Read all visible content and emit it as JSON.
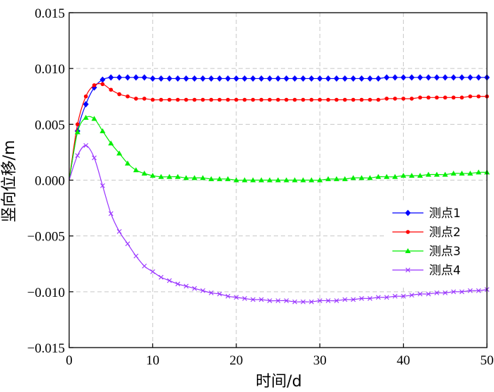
{
  "chart_data": {
    "type": "line",
    "xlabel": "时间/d",
    "ylabel": "竖向位移/m",
    "xlim": [
      0,
      50
    ],
    "ylim": [
      -0.015,
      0.015
    ],
    "x_ticks": [
      0,
      10,
      20,
      30,
      40,
      50
    ],
    "x_tick_labels": [
      "0",
      "10",
      "20",
      "30",
      "40",
      "50"
    ],
    "y_ticks": [
      -0.015,
      -0.01,
      -0.005,
      0.0,
      0.005,
      0.01,
      0.015
    ],
    "y_tick_labels": [
      "−0.015",
      "−0.010",
      "−0.005",
      "0.000",
      "0.005",
      "0.010",
      "0.015"
    ],
    "grid": true,
    "legend_position": "right-middle",
    "series": [
      {
        "name": "测点1",
        "color": "#0000ff",
        "marker": "diamond",
        "x": [
          0,
          1,
          2,
          3,
          4,
          5,
          6,
          7,
          8,
          9,
          10,
          11,
          12,
          13,
          14,
          15,
          16,
          17,
          18,
          19,
          20,
          21,
          22,
          23,
          24,
          25,
          26,
          27,
          28,
          29,
          30,
          31,
          32,
          33,
          34,
          35,
          36,
          37,
          38,
          39,
          40,
          41,
          42,
          43,
          44,
          45,
          46,
          47,
          48,
          49,
          50
        ],
        "values": [
          0.0,
          0.0044,
          0.0068,
          0.0083,
          0.009,
          0.0092,
          0.0092,
          0.0092,
          0.0092,
          0.0092,
          0.0091,
          0.0091,
          0.0091,
          0.0091,
          0.0091,
          0.0091,
          0.0091,
          0.0091,
          0.0091,
          0.0091,
          0.0091,
          0.0091,
          0.0091,
          0.0091,
          0.0091,
          0.0091,
          0.0091,
          0.0091,
          0.0091,
          0.0091,
          0.0091,
          0.0091,
          0.0091,
          0.0091,
          0.0091,
          0.0091,
          0.0091,
          0.0091,
          0.0092,
          0.0092,
          0.0092,
          0.0092,
          0.0092,
          0.0092,
          0.0092,
          0.0092,
          0.0092,
          0.0092,
          0.0092,
          0.0092,
          0.0092
        ]
      },
      {
        "name": "测点2",
        "color": "#ff0000",
        "marker": "circle",
        "x": [
          0,
          1,
          2,
          3,
          4,
          5,
          6,
          7,
          8,
          9,
          10,
          11,
          12,
          13,
          14,
          15,
          16,
          17,
          18,
          19,
          20,
          21,
          22,
          23,
          24,
          25,
          26,
          27,
          28,
          29,
          30,
          31,
          32,
          33,
          34,
          35,
          36,
          37,
          38,
          39,
          40,
          41,
          42,
          43,
          44,
          45,
          46,
          47,
          48,
          49,
          50
        ],
        "values": [
          0.0,
          0.005,
          0.0075,
          0.0085,
          0.0086,
          0.0081,
          0.0077,
          0.0075,
          0.0073,
          0.0073,
          0.0072,
          0.0072,
          0.0072,
          0.0072,
          0.0072,
          0.0072,
          0.0072,
          0.0072,
          0.0072,
          0.0072,
          0.0072,
          0.0072,
          0.0072,
          0.0072,
          0.0072,
          0.0072,
          0.0072,
          0.0072,
          0.0072,
          0.0072,
          0.0072,
          0.0072,
          0.0072,
          0.0072,
          0.0072,
          0.0072,
          0.0072,
          0.0072,
          0.0073,
          0.0073,
          0.0073,
          0.0073,
          0.0074,
          0.0074,
          0.0074,
          0.0074,
          0.0074,
          0.0074,
          0.0075,
          0.0075,
          0.0075
        ]
      },
      {
        "name": "测点3",
        "color": "#00ee00",
        "marker": "triangle",
        "x": [
          0,
          1,
          2,
          3,
          4,
          5,
          6,
          7,
          8,
          9,
          10,
          11,
          12,
          13,
          14,
          15,
          16,
          17,
          18,
          19,
          20,
          21,
          22,
          23,
          24,
          25,
          26,
          27,
          28,
          29,
          30,
          31,
          32,
          33,
          34,
          35,
          36,
          37,
          38,
          39,
          40,
          41,
          42,
          43,
          44,
          45,
          46,
          47,
          48,
          49,
          50
        ],
        "values": [
          0.0,
          0.0043,
          0.0056,
          0.0055,
          0.0044,
          0.0033,
          0.0024,
          0.0015,
          0.0009,
          0.0006,
          0.0004,
          0.0003,
          0.0003,
          0.0003,
          0.0002,
          0.0002,
          0.0002,
          0.0001,
          0.0001,
          0.0001,
          0.0,
          0.0,
          0.0,
          0.0,
          0.0,
          0.0,
          0.0,
          0.0,
          0.0,
          0.0,
          0.0,
          0.0001,
          0.0001,
          0.0001,
          0.0002,
          0.0002,
          0.0002,
          0.0003,
          0.0003,
          0.0003,
          0.0004,
          0.0004,
          0.0004,
          0.0005,
          0.0005,
          0.0005,
          0.0006,
          0.0006,
          0.0006,
          0.0007,
          0.0007
        ]
      },
      {
        "name": "测点4",
        "color": "#9933ff",
        "marker": "x",
        "x": [
          0,
          1,
          2,
          3,
          4,
          5,
          6,
          7,
          8,
          9,
          10,
          11,
          12,
          13,
          14,
          15,
          16,
          17,
          18,
          19,
          20,
          21,
          22,
          23,
          24,
          25,
          26,
          27,
          28,
          29,
          30,
          31,
          32,
          33,
          34,
          35,
          36,
          37,
          38,
          39,
          40,
          41,
          42,
          43,
          44,
          45,
          46,
          47,
          48,
          49,
          50
        ],
        "values": [
          0.0,
          0.0022,
          0.0031,
          0.002,
          -0.0005,
          -0.003,
          -0.0046,
          -0.0057,
          -0.0068,
          -0.0077,
          -0.0082,
          -0.0087,
          -0.009,
          -0.0093,
          -0.0095,
          -0.0097,
          -0.0099,
          -0.0101,
          -0.0102,
          -0.0104,
          -0.0105,
          -0.0106,
          -0.0107,
          -0.0107,
          -0.0108,
          -0.0108,
          -0.0108,
          -0.0109,
          -0.0109,
          -0.0109,
          -0.0108,
          -0.0108,
          -0.0108,
          -0.0107,
          -0.0107,
          -0.0106,
          -0.0106,
          -0.0105,
          -0.0105,
          -0.0104,
          -0.0104,
          -0.0103,
          -0.0102,
          -0.0102,
          -0.0101,
          -0.0101,
          -0.01,
          -0.01,
          -0.0099,
          -0.0099,
          -0.0098
        ]
      }
    ]
  }
}
